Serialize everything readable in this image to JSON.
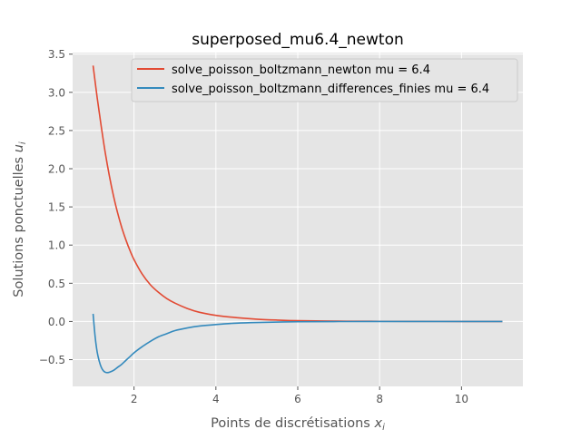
{
  "chart_data": {
    "type": "line",
    "title": "superposed_mu6.4_newton",
    "xlabel": "Points de discrétisations",
    "xlabel_sym": "x",
    "xlabel_sub": "i",
    "ylabel": "Solutions ponctuelles",
    "ylabel_sym": "u",
    "ylabel_sub": "i",
    "xlim": [
      0.5,
      11.5
    ],
    "ylim": [
      -0.85,
      3.52
    ],
    "xticks": [
      2,
      4,
      6,
      8,
      10
    ],
    "xtick_labels": [
      "2",
      "4",
      "6",
      "8",
      "10"
    ],
    "yticks": [
      -0.5,
      0.0,
      0.5,
      1.0,
      1.5,
      2.0,
      2.5,
      3.0,
      3.5
    ],
    "ytick_labels": [
      "−0.5",
      "0.0",
      "0.5",
      "1.0",
      "1.5",
      "2.0",
      "2.5",
      "3.0",
      "3.5"
    ],
    "grid": true,
    "legend_position": "top-right",
    "series": [
      {
        "name": "solve_poisson_boltzmann_newton mu = 6.4",
        "color": "#E24A33",
        "x": [
          1.0,
          1.1,
          1.2,
          1.3,
          1.4,
          1.5,
          1.6,
          1.7,
          1.8,
          1.9,
          2.0,
          2.2,
          2.4,
          2.6,
          2.8,
          3.0,
          3.3,
          3.6,
          4.0,
          4.5,
          5.0,
          5.5,
          6.0,
          7.0,
          8.0,
          9.0,
          10.0,
          11.0
        ],
        "y": [
          3.35,
          2.93,
          2.55,
          2.2,
          1.9,
          1.64,
          1.42,
          1.23,
          1.07,
          0.93,
          0.81,
          0.62,
          0.48,
          0.38,
          0.3,
          0.24,
          0.17,
          0.12,
          0.08,
          0.05,
          0.03,
          0.018,
          0.01,
          0.004,
          0.002,
          0.001,
          0.0,
          0.0
        ]
      },
      {
        "name": "solve_poisson_boltzmann_differences_finies mu = 6.4",
        "color": "#348ABD",
        "x": [
          1.0,
          1.05,
          1.1,
          1.15,
          1.2,
          1.25,
          1.3,
          1.35,
          1.4,
          1.5,
          1.6,
          1.7,
          1.8,
          1.9,
          2.0,
          2.2,
          2.4,
          2.6,
          2.8,
          3.0,
          3.3,
          3.6,
          4.0,
          4.5,
          5.0,
          6.0,
          7.0,
          8.0,
          9.0,
          10.0,
          11.0
        ],
        "y": [
          0.1,
          -0.2,
          -0.4,
          -0.52,
          -0.6,
          -0.645,
          -0.665,
          -0.67,
          -0.665,
          -0.64,
          -0.6,
          -0.56,
          -0.51,
          -0.46,
          -0.41,
          -0.33,
          -0.26,
          -0.2,
          -0.16,
          -0.12,
          -0.085,
          -0.06,
          -0.04,
          -0.022,
          -0.013,
          -0.004,
          -0.001,
          0.0,
          0.0,
          0.0,
          0.0
        ]
      }
    ]
  }
}
